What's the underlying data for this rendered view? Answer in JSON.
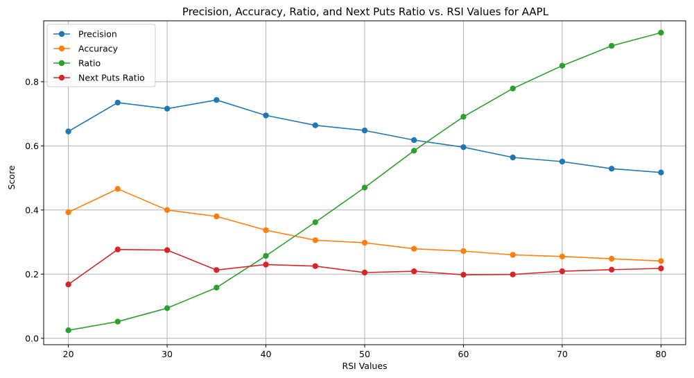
{
  "chart_data": {
    "type": "line",
    "title": "Precision, Accuracy, Ratio, and Next Puts Ratio vs. RSI Values for AAPL",
    "xlabel": "RSI Values",
    "ylabel": "Score",
    "x": [
      20,
      25,
      30,
      35,
      40,
      45,
      50,
      55,
      60,
      65,
      70,
      75,
      80
    ],
    "xlim": [
      17.5,
      82.5
    ],
    "ylim": [
      -0.02,
      0.99
    ],
    "xticks": [
      20,
      30,
      40,
      50,
      60,
      70,
      80
    ],
    "yticks": [
      0.0,
      0.2,
      0.4,
      0.6,
      0.8
    ],
    "ytick_labels": [
      "0.0",
      "0.2",
      "0.4",
      "0.6",
      "0.8"
    ],
    "grid": true,
    "legend_position": "top-left",
    "series": [
      {
        "name": "Precision",
        "color": "#1f77b4",
        "values": [
          0.645,
          0.735,
          0.716,
          0.743,
          0.695,
          0.664,
          0.648,
          0.618,
          0.596,
          0.564,
          0.551,
          0.529,
          0.517
        ]
      },
      {
        "name": "Accuracy",
        "color": "#ff7f0e",
        "values": [
          0.393,
          0.466,
          0.4,
          0.38,
          0.337,
          0.306,
          0.298,
          0.279,
          0.272,
          0.26,
          0.255,
          0.248,
          0.241
        ]
      },
      {
        "name": "Ratio",
        "color": "#2ca02c",
        "values": [
          0.025,
          0.052,
          0.094,
          0.158,
          0.257,
          0.362,
          0.47,
          0.585,
          0.691,
          0.779,
          0.85,
          0.912,
          0.953
        ]
      },
      {
        "name": "Next Puts Ratio",
        "color": "#d62728",
        "values": [
          0.168,
          0.277,
          0.275,
          0.213,
          0.23,
          0.225,
          0.205,
          0.209,
          0.198,
          0.199,
          0.209,
          0.214,
          0.218
        ]
      }
    ]
  }
}
